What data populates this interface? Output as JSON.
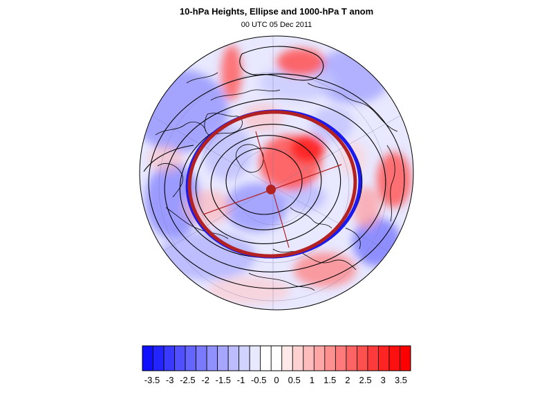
{
  "title": "10-hPa Heights, Ellipse and 1000-hPa T anom",
  "subtitle": "00 UTC 05 Dec 2011",
  "map": {
    "projection": "north polar stereographic",
    "field": "1000-hPa temperature anomaly",
    "colormap": "blue-white-red",
    "colors": {
      "coast": "#000000",
      "contour": "#000000",
      "ellipse_outer": "#1a1aee",
      "ellipse_inner": "#b22222",
      "grid": "#7a7aa8"
    }
  },
  "colorbar": {
    "labels": [
      "-3.5",
      "-3",
      "-2.5",
      "-2",
      "-1.5",
      "-1",
      "-0.5",
      "0",
      "0.5",
      "1",
      "1.5",
      "2",
      "2.5",
      "3",
      "3.5"
    ],
    "colors": [
      "#1010ff",
      "#2424ff",
      "#3a3aff",
      "#5050ff",
      "#6464ff",
      "#7a7aff",
      "#9090ff",
      "#a6a6ff",
      "#bcbcff",
      "#d2d2ff",
      "#e8e8ff",
      "#ffffff",
      "#ffffff",
      "#ffe8e8",
      "#ffd2d2",
      "#ffbcbc",
      "#ffa6a6",
      "#ff9090",
      "#ff7a7a",
      "#ff6464",
      "#ff5050",
      "#ff3a3a",
      "#ff2424",
      "#ff1010",
      "#ff0000"
    ]
  }
}
